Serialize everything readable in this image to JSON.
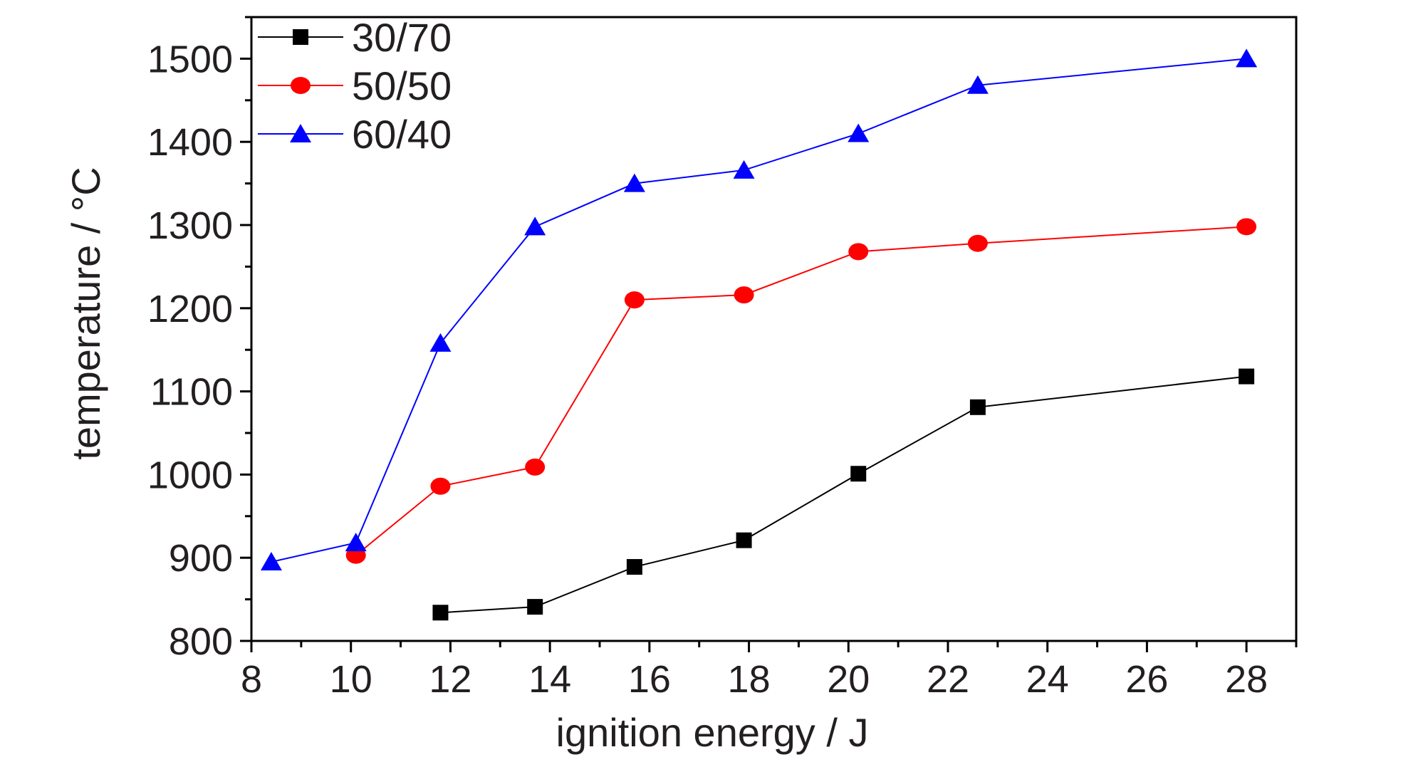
{
  "chart_data": {
    "type": "line",
    "title": "",
    "xlabel": "ignition energy / J",
    "ylabel": "temperature / °C",
    "xlim": [
      8,
      29
    ],
    "ylim": [
      800,
      1550
    ],
    "xticks": [
      "8",
      "10",
      "12",
      "14",
      "16",
      "18",
      "20",
      "22",
      "24",
      "26",
      "28"
    ],
    "yticks": [
      "800",
      "900",
      "1000",
      "1100",
      "1200",
      "1300",
      "1400",
      "1500"
    ],
    "grid": false,
    "legend_position": "top-left",
    "series": [
      {
        "name": "30/70",
        "color": "#000000",
        "marker": "square",
        "x": [
          11.8,
          13.7,
          15.7,
          17.9,
          20.2,
          22.6,
          28.0
        ],
        "y": [
          834,
          841,
          889,
          921,
          1001,
          1081,
          1118
        ]
      },
      {
        "name": "50/50",
        "color": "#ff0000",
        "marker": "circle",
        "x": [
          10.1,
          11.8,
          13.7,
          15.7,
          17.9,
          20.2,
          22.6,
          28.0
        ],
        "y": [
          903,
          986,
          1009,
          1210,
          1216,
          1268,
          1278,
          1298
        ]
      },
      {
        "name": "60/40",
        "color": "#0000ff",
        "marker": "triangle",
        "x": [
          8.4,
          10.1,
          11.8,
          13.7,
          15.7,
          17.9,
          20.2,
          22.6,
          28.0
        ],
        "y": [
          895,
          918,
          1158,
          1298,
          1350,
          1366,
          1410,
          1468,
          1500
        ]
      }
    ]
  }
}
